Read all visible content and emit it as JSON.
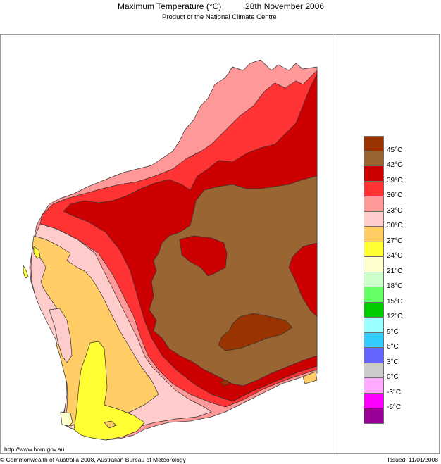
{
  "header": {
    "title": "Maximum Temperature (°C)",
    "date": "28th November 2006",
    "subtitle": "Product of the National Climate Centre"
  },
  "footer": {
    "url": "http://www.bom.gov.au",
    "copyright": "© Commonwealth of Australia 2008, Australian Bureau of Meteorology",
    "issued": "Issued: 11/01/2008"
  },
  "legend": {
    "unit": "°C",
    "swatches": [
      {
        "color": "#993300",
        "range": "> 45"
      },
      {
        "color": "#996633",
        "range": "42-45"
      },
      {
        "color": "#cc0000",
        "range": "39-42"
      },
      {
        "color": "#ff3333",
        "range": "36-39"
      },
      {
        "color": "#ff9999",
        "range": "33-36"
      },
      {
        "color": "#ffcccc",
        "range": "30-33"
      },
      {
        "color": "#ffcc66",
        "range": "27-30"
      },
      {
        "color": "#ffff33",
        "range": "24-27"
      },
      {
        "color": "#ffffcc",
        "range": "21-24"
      },
      {
        "color": "#ccffcc",
        "range": "18-21"
      },
      {
        "color": "#66ff66",
        "range": "15-18"
      },
      {
        "color": "#00cc00",
        "range": "12-15"
      },
      {
        "color": "#99ffff",
        "range": "9-12"
      },
      {
        "color": "#33ccff",
        "range": "6-9"
      },
      {
        "color": "#6666ff",
        "range": "3-6"
      },
      {
        "color": "#cccccc",
        "range": "0-3"
      },
      {
        "color": "#ffaaff",
        "range": "-3-0"
      },
      {
        "color": "#ff00ff",
        "range": "-6--3"
      },
      {
        "color": "#990099",
        "range": "< -6"
      }
    ],
    "labels": [
      "45°C",
      "42°C",
      "39°C",
      "36°C",
      "33°C",
      "30°C",
      "27°C",
      "24°C",
      "21°C",
      "18°C",
      "15°C",
      "12°C",
      "9°C",
      "6°C",
      "3°C",
      "0°C",
      "-3°C",
      "-6°C"
    ]
  },
  "map": {
    "region": "Western Australia",
    "variable": "Maximum Temperature",
    "colors": {
      "c45": "#993300",
      "c42": "#996633",
      "c39": "#cc0000",
      "c36": "#ff3333",
      "c33": "#ff9999",
      "c30": "#ffcccc",
      "c27": "#ffcc66",
      "c24": "#ffff33",
      "c21": "#ffffcc"
    }
  }
}
